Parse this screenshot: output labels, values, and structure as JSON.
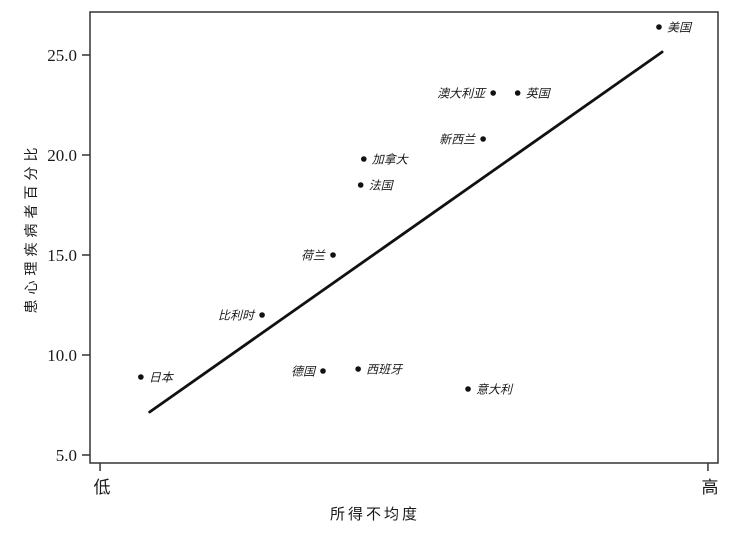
{
  "chart_data": {
    "type": "scatter",
    "title": "",
    "xlabel": "所得不均度",
    "ylabel": "患心理疾病者百分比",
    "x_axis": {
      "ticks": [
        {
          "label": "低",
          "x": 0.016
        },
        {
          "label": "高",
          "x": 0.984
        }
      ],
      "range": [
        0,
        1
      ]
    },
    "y_axis": {
      "ticks": [
        {
          "label": "5.0",
          "value": 5
        },
        {
          "label": "10.0",
          "value": 10
        },
        {
          "label": "15.0",
          "value": 15
        },
        {
          "label": "20.0",
          "value": 20
        },
        {
          "label": "25.0",
          "value": 25
        }
      ],
      "range": [
        4.6,
        27.1
      ]
    },
    "grid": false,
    "legend": "none",
    "points": [
      {
        "key": "japan",
        "label": "日本",
        "x": 0.081,
        "y": 8.9,
        "label_side": "right"
      },
      {
        "key": "belgium",
        "label": "比利时",
        "x": 0.274,
        "y": 12.0,
        "label_side": "left"
      },
      {
        "key": "germany",
        "label": "德国",
        "x": 0.371,
        "y": 9.2,
        "label_side": "left"
      },
      {
        "key": "netherlands",
        "label": "荷兰",
        "x": 0.387,
        "y": 15.0,
        "label_side": "left"
      },
      {
        "key": "spain",
        "label": "西班牙",
        "x": 0.427,
        "y": 9.3,
        "label_side": "right"
      },
      {
        "key": "france",
        "label": "法国",
        "x": 0.431,
        "y": 18.5,
        "label_side": "right"
      },
      {
        "key": "canada",
        "label": "加拿大",
        "x": 0.436,
        "y": 19.8,
        "label_side": "right"
      },
      {
        "key": "italy",
        "label": "意大利",
        "x": 0.602,
        "y": 8.3,
        "label_side": "right"
      },
      {
        "key": "new-zealand",
        "label": "新西兰",
        "x": 0.626,
        "y": 20.8,
        "label_side": "left"
      },
      {
        "key": "australia",
        "label": "澳大利亚",
        "x": 0.642,
        "y": 23.1,
        "label_side": "left"
      },
      {
        "key": "uk",
        "label": "英国",
        "x": 0.681,
        "y": 23.1,
        "label_side": "right"
      },
      {
        "key": "usa",
        "label": "美国",
        "x": 0.906,
        "y": 26.4,
        "label_side": "right"
      }
    ],
    "trend_line": {
      "x1": 0.095,
      "y1": 7.15,
      "x2": 0.911,
      "y2": 25.15
    },
    "colors": {
      "point": "#111111",
      "trend": "#111111",
      "frame": "#333333",
      "text": "#1a1a1a",
      "background": "#ffffff"
    }
  }
}
